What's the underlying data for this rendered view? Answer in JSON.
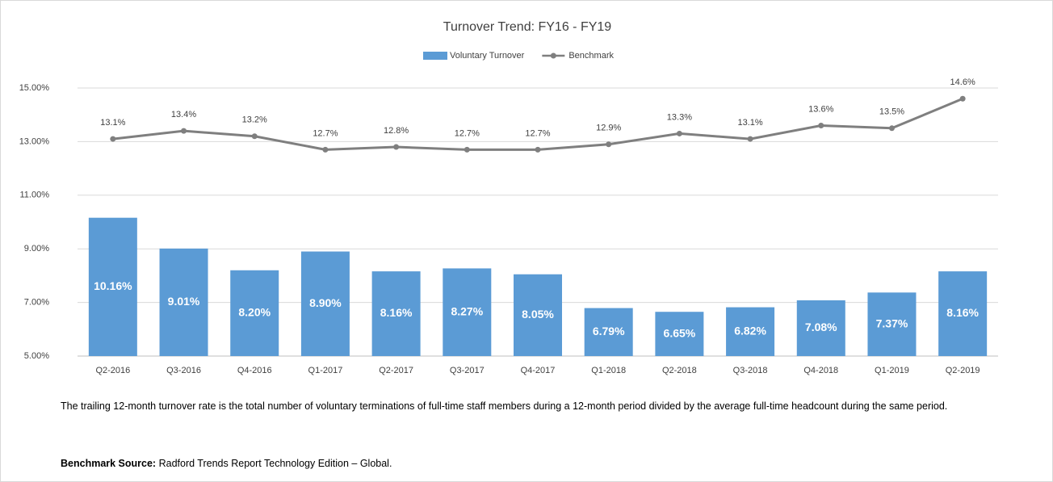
{
  "chart_data": {
    "type": "bar",
    "title": "Turnover Trend: FY16 - FY19",
    "categories": [
      "Q2-2016",
      "Q3-2016",
      "Q4-2016",
      "Q1-2017",
      "Q2-2017",
      "Q3-2017",
      "Q4-2017",
      "Q1-2018",
      "Q2-2018",
      "Q3-2018",
      "Q4-2018",
      "Q1-2019",
      "Q2-2019"
    ],
    "series": [
      {
        "name": "Voluntary Turnover",
        "type": "bar",
        "color": "#5b9bd5",
        "values": [
          10.16,
          9.01,
          8.2,
          8.9,
          8.16,
          8.27,
          8.05,
          6.79,
          6.65,
          6.82,
          7.08,
          7.37,
          8.16
        ],
        "value_labels": [
          "10.16%",
          "9.01%",
          "8.20%",
          "8.90%",
          "8.16%",
          "8.27%",
          "8.05%",
          "6.79%",
          "6.65%",
          "6.82%",
          "7.08%",
          "7.37%",
          "8.16%"
        ]
      },
      {
        "name": "Benchmark",
        "type": "line",
        "color": "#7f7f7f",
        "values": [
          13.1,
          13.4,
          13.2,
          12.7,
          12.8,
          12.7,
          12.7,
          12.9,
          13.3,
          13.1,
          13.6,
          13.5,
          14.6
        ],
        "value_labels": [
          "13.1%",
          "13.4%",
          "13.2%",
          "12.7%",
          "12.8%",
          "12.7%",
          "12.7%",
          "12.9%",
          "13.3%",
          "13.1%",
          "13.6%",
          "13.5%",
          "14.6%"
        ]
      }
    ],
    "ylim": [
      5,
      15
    ],
    "yticks": [
      {
        "value": 5,
        "label": "5.00%"
      },
      {
        "value": 7,
        "label": "7.00%"
      },
      {
        "value": 9,
        "label": "9.00%"
      },
      {
        "value": 11,
        "label": "11.00%"
      },
      {
        "value": 13,
        "label": "13.00%"
      },
      {
        "value": 15,
        "label": "15.00%"
      }
    ],
    "grid": true,
    "legend": "top"
  },
  "notes": {
    "description": "The trailing 12-month turnover rate is the total number of voluntary terminations of full-time staff members during a 12-month period divided by the average full-time headcount during the same period.",
    "source_label": "Benchmark Source:",
    "source": "Radford Trends Report Technology Edition – Global."
  }
}
